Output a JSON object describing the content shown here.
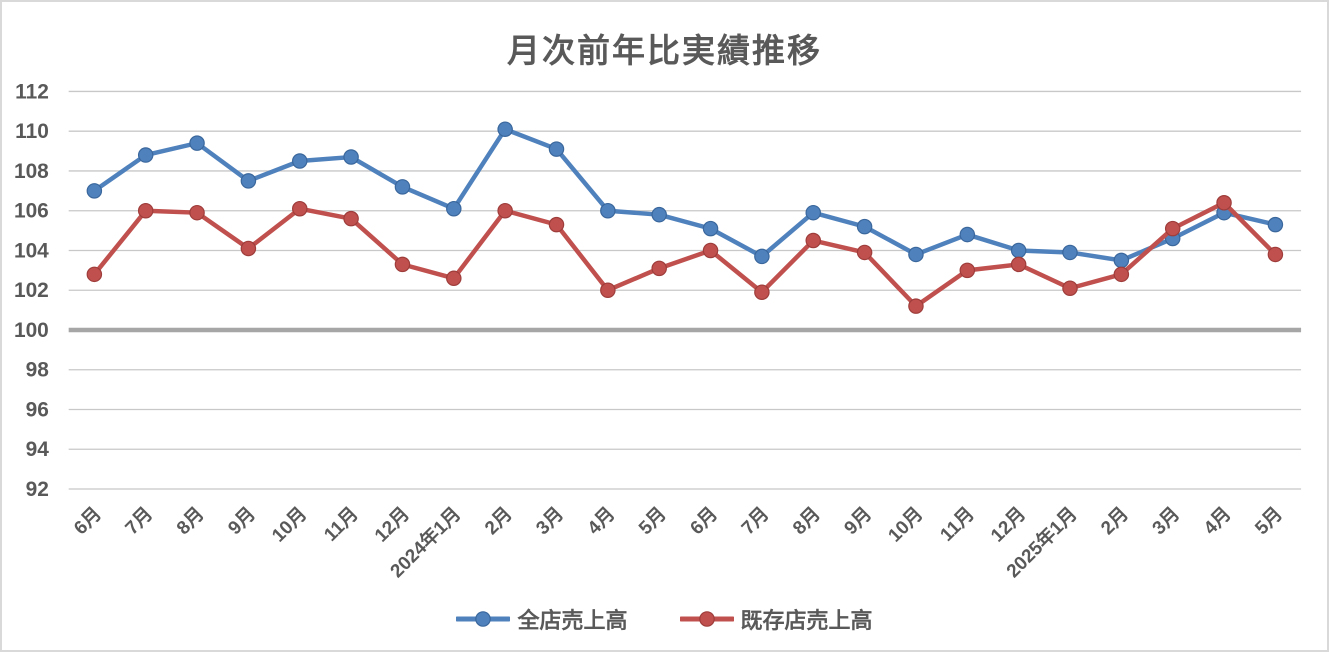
{
  "window": {
    "background": "#FFFFFF",
    "border_color": "#D9D9D9"
  },
  "chart_data": {
    "type": "line",
    "title": "月次前年比実績推移",
    "categories": [
      "6月",
      "7月",
      "8月",
      "9月",
      "10月",
      "11月",
      "12月",
      "2024年1月",
      "2月",
      "3月",
      "4月",
      "5月",
      "6月",
      "7月",
      "8月",
      "9月",
      "10月",
      "11月",
      "12月",
      "2025年1月",
      "2月",
      "3月",
      "4月",
      "5月"
    ],
    "series": [
      {
        "name": "全店売上高",
        "color": "#4F81BD",
        "marker_edge": "#3A679C",
        "values": [
          107.0,
          108.8,
          109.4,
          107.5,
          108.5,
          108.7,
          107.2,
          106.1,
          110.1,
          109.1,
          106.0,
          105.8,
          105.1,
          103.7,
          105.9,
          105.2,
          103.8,
          104.8,
          104.0,
          103.9,
          103.5,
          104.6,
          105.9,
          105.3
        ]
      },
      {
        "name": "既存店売上高",
        "color": "#C0504D",
        "marker_edge": "#9E3D3B",
        "values": [
          102.8,
          106.0,
          105.9,
          104.1,
          106.1,
          105.6,
          103.3,
          102.6,
          106.0,
          105.3,
          102.0,
          103.1,
          104.0,
          101.9,
          104.5,
          103.9,
          101.2,
          103.0,
          103.3,
          102.1,
          102.8,
          105.1,
          106.4,
          103.8
        ]
      }
    ],
    "ylim": [
      92,
      112
    ],
    "y_ticks": [
      112,
      110,
      108,
      106,
      104,
      102,
      100,
      98,
      96,
      94,
      92
    ],
    "baseline": {
      "value": 100,
      "color": "#A6A6A6"
    },
    "grid": "horizontal",
    "gridline_color": "#C8C8C8",
    "axis_text_color": "#595959",
    "legend_position": "bottom"
  }
}
